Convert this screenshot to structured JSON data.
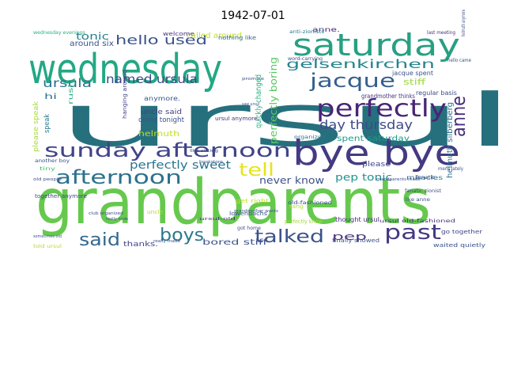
{
  "figure": {
    "title": "1942-07-01"
  },
  "wordcloud": {
    "words": [
      {
        "text": "grandparents",
        "color": "#66c94e"
      },
      {
        "text": "ursul",
        "color": "#26707e"
      },
      {
        "text": "wednesday",
        "color": "#22a884"
      },
      {
        "text": "saturday",
        "color": "#27a082"
      },
      {
        "text": "bye bye",
        "color": "#443a83"
      },
      {
        "text": "sunday afternoon",
        "color": "#414487"
      },
      {
        "text": "perfectly",
        "color": "#482576"
      },
      {
        "text": "jacque",
        "color": "#35608d"
      },
      {
        "text": "anne",
        "color": "#472d7b"
      },
      {
        "text": "afternoon",
        "color": "#2c728e"
      },
      {
        "text": "past",
        "color": "#443983"
      },
      {
        "text": "talked",
        "color": "#3b528b"
      },
      {
        "text": "boys",
        "color": "#2a788e"
      },
      {
        "text": "said",
        "color": "#31688e"
      },
      {
        "text": "tell",
        "color": "#e6e419"
      },
      {
        "text": "day thursday",
        "color": "#3e4a89"
      },
      {
        "text": "gelsenkirchen",
        "color": "#25858e"
      },
      {
        "text": "named ursula",
        "color": "#3f4788"
      },
      {
        "text": "hello used",
        "color": "#3b528b"
      },
      {
        "text": "ursula",
        "color": "#2d708e"
      },
      {
        "text": "perfectly sweet",
        "color": "#2a768e"
      },
      {
        "text": "perfectly boring",
        "color": "#5ac864"
      },
      {
        "text": "never know",
        "color": "#3b528b"
      },
      {
        "text": "pep tonic",
        "color": "#21918c"
      },
      {
        "text": "pep",
        "color": "#46337e"
      },
      {
        "text": "tonic",
        "color": "#26828e"
      },
      {
        "text": "around six",
        "color": "#3a548c"
      },
      {
        "text": "spent saturday",
        "color": "#1f9a8a"
      },
      {
        "text": "helmuth silberberg",
        "color": "#2e6f8e"
      },
      {
        "text": "quickly changed",
        "color": "#2ab07f"
      },
      {
        "text": "come tonight",
        "color": "#3b528b"
      },
      {
        "text": "uncle said",
        "color": "#424086"
      },
      {
        "text": "helmuth",
        "color": "#bddf26"
      },
      {
        "text": "please speak",
        "color": "#a8db34"
      },
      {
        "text": "stiff",
        "color": "#9bd93c"
      },
      {
        "text": "bored stiff",
        "color": "#3b528b"
      },
      {
        "text": "thanks.",
        "color": "#404688"
      },
      {
        "text": "called around",
        "color": "#c0df25"
      },
      {
        "text": "welcome",
        "color": "#46337e"
      },
      {
        "text": "anne.",
        "color": "#482878"
      },
      {
        "text": "wednesday evenings",
        "color": "#2ab07f"
      },
      {
        "text": "hi",
        "color": "#2c728e"
      },
      {
        "text": "speak",
        "color": "#2a788e"
      },
      {
        "text": "rush",
        "color": "#25ac82"
      },
      {
        "text": "together anymore",
        "color": "#3e4989"
      },
      {
        "text": "another boy",
        "color": "#3b528b"
      },
      {
        "text": "please",
        "color": "#3e4989"
      },
      {
        "text": "miracles",
        "color": "#2d708e"
      },
      {
        "text": "regular basis",
        "color": "#3e4c8a"
      },
      {
        "text": "jacque spent",
        "color": "#3b528b"
      },
      {
        "text": "grandmother thinks",
        "color": "#46337e"
      },
      {
        "text": "thought ursul",
        "color": "#472a7a"
      },
      {
        "text": "finally showed",
        "color": "#3b528b"
      },
      {
        "text": "waited quietly",
        "color": "#3b528b"
      },
      {
        "text": "go together",
        "color": "#414487"
      },
      {
        "text": "anymore.",
        "color": "#38588c"
      },
      {
        "text": "hanging around",
        "color": "#424086"
      },
      {
        "text": "nothing like",
        "color": "#31688e"
      },
      {
        "text": "ursul anymore.",
        "color": "#46327e"
      },
      {
        "text": "organized",
        "color": "#2c728e"
      },
      {
        "text": "get right",
        "color": "#c2df23"
      },
      {
        "text": "lowenbachs",
        "color": "#3a548c"
      },
      {
        "text": "perfectly know",
        "color": "#a0da39"
      },
      {
        "text": "last meeting",
        "color": "#46327e"
      },
      {
        "text": "anti-zionists",
        "color": "#2a788e"
      },
      {
        "text": "helmuth anymore",
        "color": "#3b528b"
      },
      {
        "text": "word-carrying",
        "color": "#3e4a89"
      },
      {
        "text": "hello came",
        "color": "#3b528b"
      },
      {
        "text": "old people",
        "color": "#3b528b"
      },
      {
        "text": "old-fashioned",
        "color": "#3e4a89"
      },
      {
        "text": "tiny",
        "color": "#42be71"
      },
      {
        "text": "really nade",
        "color": "#3b528b"
      },
      {
        "text": "got home",
        "color": "#3b528b"
      },
      {
        "text": "bookstore",
        "color": "#3b528b"
      },
      {
        "text": "grandmother wants",
        "color": "#3b528b"
      },
      {
        "text": "ursul-old",
        "color": "#46337e"
      },
      {
        "text": "fanatic",
        "color": "#3b528b"
      },
      {
        "text": "fanatic zionist",
        "color": "#3b528b"
      },
      {
        "text": "like anne",
        "color": "#3b528b"
      },
      {
        "text": "mens lately",
        "color": "#3b528b"
      },
      {
        "text": "saw ursul",
        "color": "#3b528b"
      },
      {
        "text": "sometimes old",
        "color": "#3b528b"
      },
      {
        "text": "told ursul",
        "color": "#b5de2b"
      },
      {
        "text": "club organized",
        "color": "#3b528b"
      },
      {
        "text": "like sitting",
        "color": "#3b528b"
      },
      {
        "text": "promise",
        "color": "#3b528b"
      },
      {
        "text": "really made",
        "color": "#3b528b"
      },
      {
        "text": "rang",
        "color": "#b5de2b"
      },
      {
        "text": "grandparents made",
        "color": "#3b528b"
      },
      {
        "text": "ursul old-fashioned",
        "color": "#46337e"
      },
      {
        "text": "uncle",
        "color": "#b5de2b"
      }
    ]
  }
}
